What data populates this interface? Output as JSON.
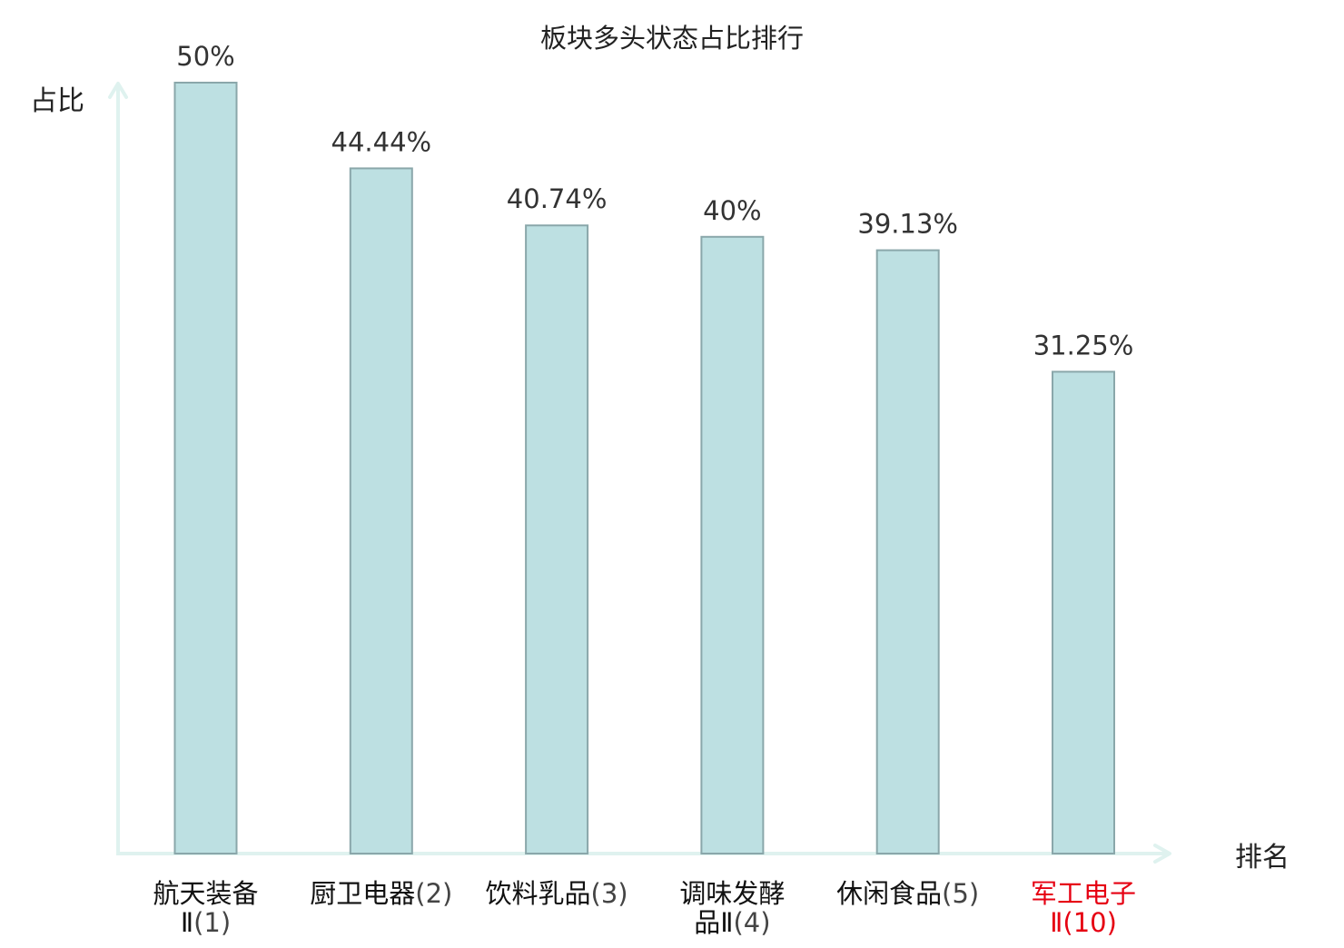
{
  "colors": {
    "background": "#ffffff",
    "bar_fill": "#bde0e2",
    "bar_stroke": "#8aa7aa",
    "axis": "#dff2ef",
    "text": "#222222",
    "value_text": "#333333",
    "category_text": "#111111",
    "highlight": "#e60012"
  },
  "chart_data": {
    "type": "bar",
    "title": "板块多头状态占比排行",
    "xlabel": "排名",
    "ylabel": "占比",
    "ylim": [
      0,
      50
    ],
    "grid": false,
    "categories": [
      {
        "name": "航天装备",
        "suffix": "Ⅱ",
        "rank": "(1)",
        "highlight": false
      },
      {
        "name": "厨卫电器",
        "suffix": "",
        "rank": "(2)",
        "highlight": false
      },
      {
        "name": "饮料乳品",
        "suffix": "",
        "rank": "(3)",
        "highlight": false
      },
      {
        "name": "调味发酵",
        "suffix": "品Ⅱ",
        "rank": "(4)",
        "highlight": false
      },
      {
        "name": "休闲食品",
        "suffix": "",
        "rank": "(5)",
        "highlight": false
      },
      {
        "name": "军工电子",
        "suffix": "Ⅱ",
        "rank": "(10)",
        "highlight": true
      }
    ],
    "values": [
      50,
      44.44,
      40.74,
      40,
      39.13,
      31.25
    ],
    "value_labels": [
      "50%",
      "44.44%",
      "40.74%",
      "40%",
      "39.13%",
      "31.25%"
    ]
  }
}
